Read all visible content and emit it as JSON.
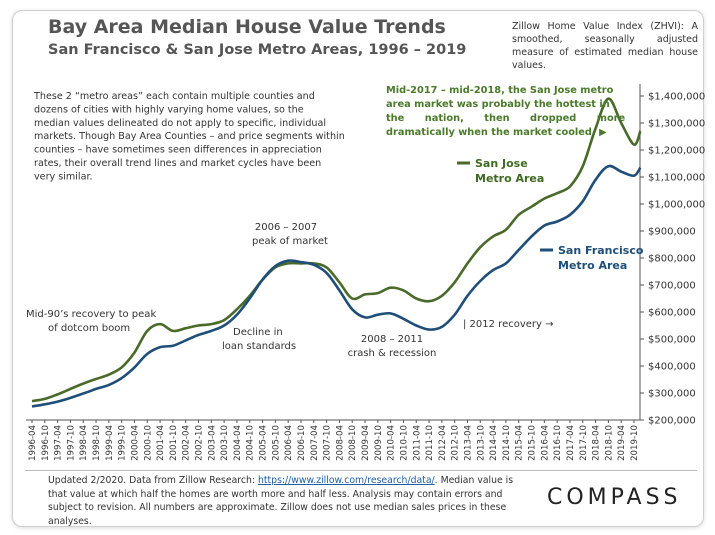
{
  "header": {
    "title": "Bay Area Median House Value Trends",
    "subtitle": "San Francisco & San Jose Metro Areas, 1996 – 2019",
    "zhvi_note": "Zillow Home Value Index (ZHVI): A smoothed, seasonally adjusted measure of estimated median house values."
  },
  "annotations": {
    "intro": "These 2 “metro areas” each contain multiple counties and dozens of cities with highly varying home values, so the median values delineated do not apply to specific, individual markets. Though Bay Area Counties – and price segments within counties – have sometimes seen differences in appreciation rates, their overall trend lines and market cycles have been very similar.",
    "peak_2006_l1": "2006 – 2007",
    "peak_2006_l2": "peak of market",
    "mid90_l1": "Mid-90’s recovery to peak",
    "mid90_l2": "of dotcom boom",
    "decline_l1": "Decline in",
    "decline_l2": "loan standards",
    "crash_l1": "2008 – 2011",
    "crash_l2": "crash & recession",
    "recovery_2012": "| 2012 recovery →",
    "sj_hot_l1": "Mid-2017 – mid-2018, the San Jose metro",
    "sj_hot_l2": "area market was probably the hottest in",
    "sj_hot_l3": "the      nation,      then      dropped      more",
    "sj_hot_l4": "dramatically when the market cooled. ▶"
  },
  "footer": {
    "text_a": "Updated 2/2020. Data from Zillow Research: ",
    "link": "https://www.zillow.com/research/data/",
    "text_b": ". Median value is that value at which half the homes are worth more and half less. Analysis may contain errors and subject to revision. All numbers are approximate. Zillow does not use median sales prices in these analyses.",
    "logo": "COMPASS"
  },
  "chart_data": {
    "type": "line",
    "ylim": [
      200000,
      1400000
    ],
    "y_ticks": [
      200000,
      300000,
      400000,
      500000,
      600000,
      700000,
      800000,
      900000,
      1000000,
      1100000,
      1200000,
      1300000,
      1400000
    ],
    "y_tick_labels": [
      "$200,000",
      "$300,000",
      "$400,000",
      "$500,000",
      "$600,000",
      "$700,000",
      "$800,000",
      "$900,000",
      "$1,000,000",
      "$1,100,000",
      "$1,200,000",
      "$1,300,000",
      "$1,400,000"
    ],
    "x_tick_labels": [
      "1996-04",
      "1996-10",
      "1997-04",
      "1997-10",
      "1998-04",
      "1998-10",
      "1999-04",
      "1999-10",
      "2000-04",
      "2000-10",
      "2001-04",
      "2001-10",
      "2002-04",
      "2002-10",
      "2003-04",
      "2003-10",
      "2004-04",
      "2004-10",
      "2005-04",
      "2005-10",
      "2006-04",
      "2006-10",
      "2007-04",
      "2007-10",
      "2008-04",
      "2008-10",
      "2009-04",
      "2009-10",
      "2010-04",
      "2010-10",
      "2011-04",
      "2011-10",
      "2012-04",
      "2012-10",
      "2013-04",
      "2013-10",
      "2014-04",
      "2014-10",
      "2015-04",
      "2015-10",
      "2016-04",
      "2016-10",
      "2017-04",
      "2017-10",
      "2018-04",
      "2018-10",
      "2019-04",
      "2019-10"
    ],
    "grid": false,
    "series": [
      {
        "name": "San Jose Metro Area",
        "label_l1": "San Jose",
        "label_l2": "Metro Area",
        "color": "#4a6a2a",
        "x": [
          "1996-04",
          "1996-10",
          "1997-04",
          "1997-10",
          "1998-04",
          "1998-10",
          "1999-04",
          "1999-10",
          "2000-04",
          "2000-10",
          "2001-04",
          "2001-10",
          "2002-04",
          "2002-10",
          "2003-04",
          "2003-10",
          "2004-04",
          "2004-10",
          "2005-04",
          "2005-10",
          "2006-04",
          "2006-10",
          "2007-04",
          "2007-10",
          "2008-04",
          "2008-10",
          "2009-04",
          "2009-10",
          "2010-04",
          "2010-10",
          "2011-04",
          "2011-10",
          "2012-04",
          "2012-10",
          "2013-04",
          "2013-10",
          "2014-04",
          "2014-10",
          "2015-04",
          "2015-10",
          "2016-04",
          "2016-10",
          "2017-04",
          "2017-10",
          "2018-04",
          "2018-10",
          "2019-04",
          "2019-10",
          "2020-01"
        ],
        "values": [
          270000,
          278000,
          295000,
          315000,
          335000,
          352000,
          368000,
          395000,
          450000,
          530000,
          555000,
          530000,
          540000,
          550000,
          555000,
          570000,
          610000,
          660000,
          720000,
          765000,
          780000,
          780000,
          780000,
          765000,
          710000,
          650000,
          665000,
          670000,
          690000,
          680000,
          650000,
          640000,
          660000,
          710000,
          780000,
          840000,
          880000,
          905000,
          960000,
          990000,
          1020000,
          1040000,
          1065000,
          1140000,
          1280000,
          1390000,
          1300000,
          1220000,
          1270000
        ]
      },
      {
        "name": "San Francisco Metro Area",
        "label_l1": "San Francisco",
        "label_l2": "Metro Area",
        "color": "#1f4e79",
        "x": [
          "1996-04",
          "1996-10",
          "1997-04",
          "1997-10",
          "1998-04",
          "1998-10",
          "1999-04",
          "1999-10",
          "2000-04",
          "2000-10",
          "2001-04",
          "2001-10",
          "2002-04",
          "2002-10",
          "2003-04",
          "2003-10",
          "2004-04",
          "2004-10",
          "2005-04",
          "2005-10",
          "2006-04",
          "2006-10",
          "2007-04",
          "2007-10",
          "2008-04",
          "2008-10",
          "2009-04",
          "2009-10",
          "2010-04",
          "2010-10",
          "2011-04",
          "2011-10",
          "2012-04",
          "2012-10",
          "2013-04",
          "2013-10",
          "2014-04",
          "2014-10",
          "2015-04",
          "2015-10",
          "2016-04",
          "2016-10",
          "2017-04",
          "2017-10",
          "2018-04",
          "2018-10",
          "2019-04",
          "2019-10",
          "2020-01"
        ],
        "values": [
          250000,
          258000,
          268000,
          282000,
          298000,
          315000,
          330000,
          355000,
          395000,
          445000,
          470000,
          475000,
          495000,
          515000,
          530000,
          550000,
          590000,
          650000,
          720000,
          770000,
          790000,
          785000,
          775000,
          745000,
          680000,
          610000,
          580000,
          590000,
          595000,
          575000,
          550000,
          535000,
          545000,
          590000,
          660000,
          715000,
          755000,
          780000,
          830000,
          880000,
          920000,
          935000,
          960000,
          1010000,
          1090000,
          1140000,
          1120000,
          1105000,
          1135000
        ]
      }
    ]
  }
}
